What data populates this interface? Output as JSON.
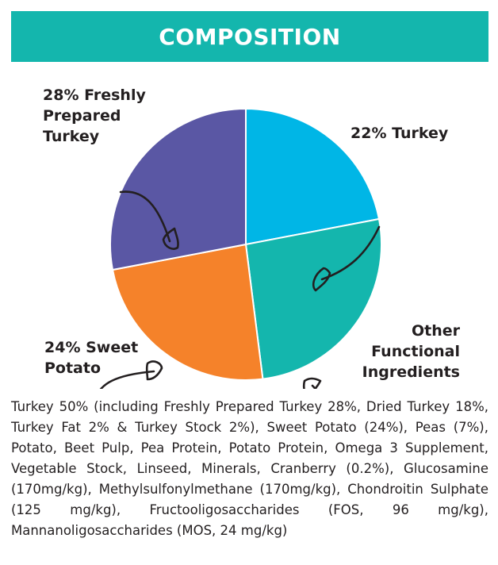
{
  "header": {
    "title": "COMPOSITION",
    "bg_color": "#14b6ad"
  },
  "chart_data": {
    "type": "pie",
    "slices": [
      {
        "name": "Turkey",
        "value": 22,
        "color": "#00b6e6"
      },
      {
        "name": "Other Functional Ingredients",
        "value": 26,
        "color": "#14b6ad"
      },
      {
        "name": "Sweet Potato",
        "value": 24,
        "color": "#f5822a"
      },
      {
        "name": "Freshly Prepared Turkey",
        "value": 28,
        "color": "#5a57a4"
      }
    ],
    "labels": {
      "turkey": [
        "22% Turkey"
      ],
      "other": [
        "Other",
        "Functional",
        "Ingredients"
      ],
      "sweet_potato": [
        "24% Sweet",
        "Potato"
      ],
      "fresh_turkey": [
        "28% Freshly",
        "Prepared",
        "Turkey"
      ]
    }
  },
  "ingredients": "Turkey 50% (including Freshly Prepared Turkey 28%, Dried Turkey 18%, Turkey Fat 2% & Turkey Stock 2%), Sweet Potato (24%), Peas (7%), Potato, Beet Pulp, Pea Protein, Potato Protein, Omega 3 Supplement, Vegetable Stock, Linseed, Minerals, Cranberry (0.2%), Glucosamine (170mg/kg), Methylsulfonylmethane (170mg/kg), Chondroitin Sulphate (125 mg/kg), Fructooligosaccharides (FOS, 96 mg/kg), Mannanoligosaccharides (MOS, 24 mg/kg)"
}
